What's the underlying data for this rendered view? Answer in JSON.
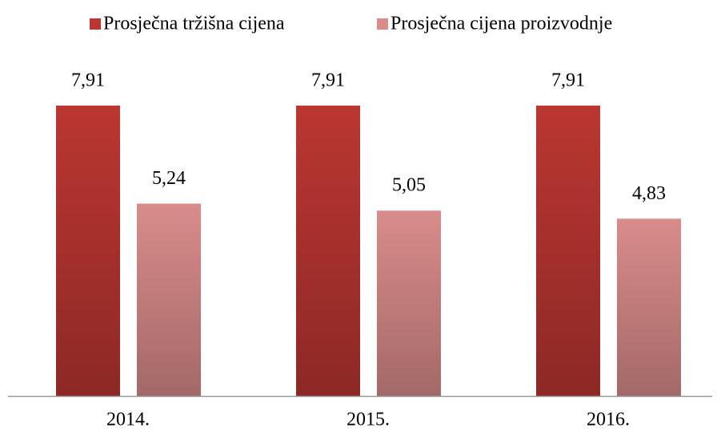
{
  "chart_data": {
    "type": "bar",
    "categories": [
      "2014.",
      "2015.",
      "2016."
    ],
    "series": [
      {
        "name": "Prosječna tržišna cijena",
        "color": "#bb3631",
        "values": [
          7.91,
          7.91,
          7.91
        ],
        "value_labels": [
          "7,91",
          "7,91",
          "7,91"
        ]
      },
      {
        "name": "Prosječna cijena proizvodnje",
        "color": "#d98c8a",
        "values": [
          5.24,
          5.05,
          4.83
        ],
        "value_labels": [
          "5,24",
          "5,05",
          "4,83"
        ]
      }
    ]
  }
}
